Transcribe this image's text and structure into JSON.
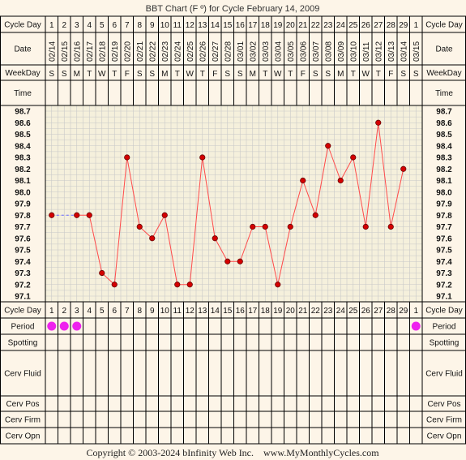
{
  "title": "BBT Chart (F º) for Cycle February 14, 2009",
  "footer": "Copyright © 2003-2024 bInfinity Web Inc.    www.MyMonthlyCycles.com",
  "row_labels": {
    "cycle_day": "Cycle Day",
    "date": "Date",
    "weekday": "WeekDay",
    "time": "Time",
    "period": "Period",
    "spotting": "Spotting",
    "cerv_fluid": "Cerv Fluid",
    "cerv_pos": "Cerv Pos",
    "cerv_firm": "Cerv Firm",
    "cerv_opn": "Cerv Opn"
  },
  "colors": {
    "background": "#fdf5e8",
    "plot_bg": "#f5f0dc",
    "grid": "#c8c8c8",
    "line": "#ff4a4a",
    "marker_fill": "#d40000",
    "period_dot": "#ee22ee",
    "coverline": "#6666ff"
  },
  "chart_data": {
    "type": "line",
    "ylabel": "",
    "ylim": [
      97.1,
      98.7
    ],
    "yticks": [
      "98.7",
      "98.6",
      "98.5",
      "98.4",
      "98.3",
      "98.2",
      "98.1",
      "98.0",
      "97.9",
      "97.8",
      "97.7",
      "97.6",
      "97.5",
      "97.4",
      "97.3",
      "97.2",
      "97.1"
    ],
    "grid": true,
    "cycle_days": [
      "1",
      "2",
      "3",
      "4",
      "5",
      "6",
      "7",
      "8",
      "9",
      "10",
      "11",
      "12",
      "13",
      "14",
      "15",
      "16",
      "17",
      "18",
      "19",
      "20",
      "21",
      "22",
      "23",
      "24",
      "25",
      "26",
      "27",
      "28",
      "29",
      "1"
    ],
    "dates": [
      "02/14",
      "02/15",
      "02/16",
      "02/17",
      "02/18",
      "02/19",
      "02/20",
      "02/21",
      "02/22",
      "02/23",
      "02/24",
      "02/25",
      "02/26",
      "02/27",
      "02/28",
      "03/01",
      "03/02",
      "03/03",
      "03/04",
      "03/05",
      "03/06",
      "03/07",
      "03/08",
      "03/09",
      "03/10",
      "03/11",
      "03/12",
      "03/13",
      "03/14",
      "03/15"
    ],
    "weekdays": [
      "S",
      "S",
      "M",
      "T",
      "W",
      "T",
      "F",
      "S",
      "S",
      "M",
      "T",
      "W",
      "T",
      "F",
      "S",
      "S",
      "M",
      "T",
      "W",
      "T",
      "F",
      "S",
      "S",
      "M",
      "T",
      "W",
      "T",
      "F",
      "S",
      "S"
    ],
    "temperatures": [
      97.8,
      null,
      97.8,
      97.8,
      97.3,
      97.2,
      98.3,
      97.7,
      97.6,
      97.8,
      97.2,
      97.2,
      98.3,
      97.6,
      97.4,
      97.4,
      97.7,
      97.7,
      97.2,
      97.7,
      98.1,
      97.8,
      98.4,
      98.1,
      98.3,
      97.7,
      98.6,
      97.7,
      98.2,
      null
    ],
    "period": [
      true,
      true,
      true,
      false,
      false,
      false,
      false,
      false,
      false,
      false,
      false,
      false,
      false,
      false,
      false,
      false,
      false,
      false,
      false,
      false,
      false,
      false,
      false,
      false,
      false,
      false,
      false,
      false,
      false,
      true
    ]
  }
}
